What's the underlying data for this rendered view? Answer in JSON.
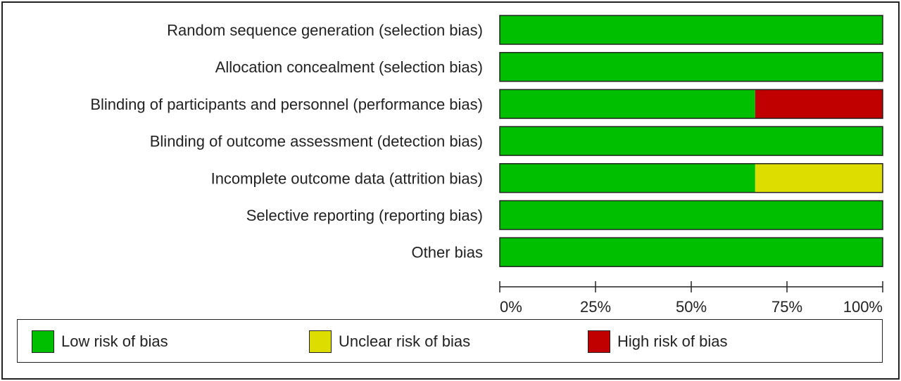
{
  "chart_data": {
    "type": "bar",
    "orientation": "horizontal",
    "stacked": true,
    "percent": true,
    "categories": [
      "Random sequence generation (selection bias)",
      "Allocation concealment (selection bias)",
      "Blinding of participants and personnel (performance bias)",
      "Blinding of outcome assessment (detection bias)",
      "Incomplete outcome data (attrition bias)",
      "Selective reporting (reporting bias)",
      "Other bias"
    ],
    "series": [
      {
        "name": "Low risk of bias",
        "color": "#00bf00",
        "values": [
          100,
          100,
          66.7,
          100,
          66.7,
          100,
          100
        ]
      },
      {
        "name": "Unclear risk of bias",
        "color": "#dddd00",
        "values": [
          0,
          0,
          0,
          0,
          33.3,
          0,
          0
        ]
      },
      {
        "name": "High risk of bias",
        "color": "#c00000",
        "values": [
          0,
          0,
          33.3,
          0,
          0,
          0,
          0
        ]
      }
    ],
    "xlim": [
      0,
      100
    ],
    "xticks": [
      "0%",
      "25%",
      "50%",
      "75%",
      "100%"
    ],
    "grid": false,
    "legend_position": "bottom"
  },
  "legend": {
    "items": [
      {
        "label": "Low risk of bias",
        "color": "#00bf00"
      },
      {
        "label": "Unclear risk of bias",
        "color": "#dddd00"
      },
      {
        "label": "High risk of bias",
        "color": "#c00000"
      }
    ]
  }
}
